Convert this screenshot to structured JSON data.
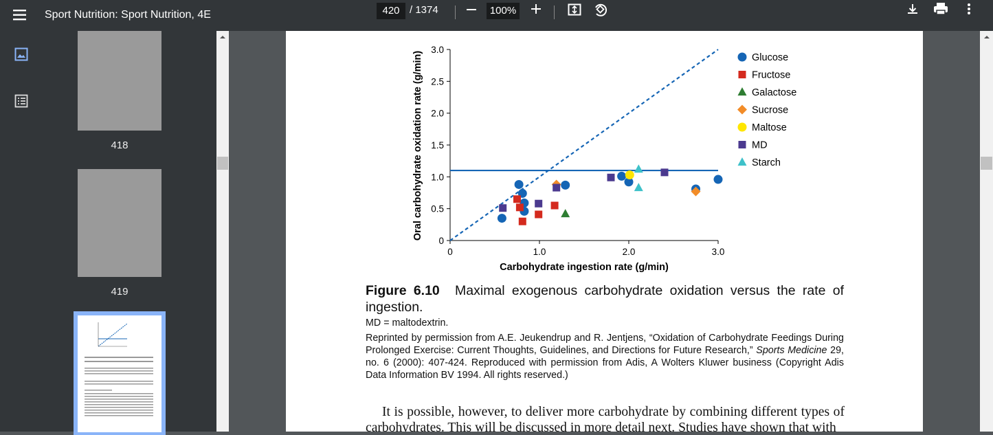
{
  "toolbar": {
    "title": "Sport Nutrition: Sport Nutrition, 4E",
    "page_current": "420",
    "page_total": "/ 1374",
    "zoom": "100%"
  },
  "sidebar": {
    "thumbnail_labels": [
      "418",
      "419"
    ]
  },
  "chart_data": {
    "type": "scatter",
    "x_label": "Carbohydrate ingestion rate (g/min)",
    "y_label": "Oral carbohydrate oxidation rate (g/min)",
    "xlim": [
      0,
      3
    ],
    "ylim": [
      0,
      3
    ],
    "xticks": [
      0,
      {
        "value": 1,
        "label": "1.0"
      },
      {
        "value": 2,
        "label": "2.0"
      },
      {
        "value": 3,
        "label": "3.0"
      }
    ],
    "yticks": [
      0,
      0.5,
      {
        "value": 1,
        "label": "1.0"
      },
      1.5,
      {
        "value": 2,
        "label": "2.0"
      },
      2.5,
      {
        "value": 3,
        "label": "3.0"
      }
    ],
    "hline": 1.1,
    "hline_color": "#1565b5",
    "diagonal": {
      "x": [
        0,
        3
      ],
      "values": [
        0,
        3
      ]
    },
    "series": [
      {
        "name": "Glucose",
        "color": "#1565b5",
        "marker": "circle",
        "x": [
          0.77,
          0.81,
          0.83,
          0.83,
          0.58,
          1.29,
          1.92,
          2.0,
          2.75,
          3.0
        ],
        "values": [
          0.88,
          0.74,
          0.59,
          0.46,
          0.35,
          0.87,
          1.01,
          0.92,
          0.81,
          0.96
        ]
      },
      {
        "name": "Fructose",
        "color": "#d42a1e",
        "marker": "square",
        "x": [
          0.75,
          0.78,
          0.81,
          0.99,
          1.17
        ],
        "values": [
          0.65,
          0.52,
          0.3,
          0.41,
          0.55
        ]
      },
      {
        "name": "Galactose",
        "color": "#2e7d32",
        "marker": "triangle",
        "x": [
          1.29
        ],
        "values": [
          0.42
        ]
      },
      {
        "name": "Sucrose",
        "color": "#f28c28",
        "marker": "diamond",
        "x": [
          1.19,
          2.75
        ],
        "values": [
          0.88,
          0.77
        ]
      },
      {
        "name": "Maltose",
        "color": "#ffe600",
        "marker": "circle",
        "x": [
          2.01
        ],
        "values": [
          1.03
        ]
      },
      {
        "name": "MD",
        "color": "#4b3a8f",
        "marker": "square",
        "x": [
          0.59,
          0.99,
          1.19,
          1.8,
          2.4
        ],
        "values": [
          0.51,
          0.58,
          0.83,
          0.99,
          1.07
        ]
      },
      {
        "name": "Starch",
        "color": "#3ec1c9",
        "marker": "triangle",
        "x": [
          2.11,
          2.11
        ],
        "values": [
          1.12,
          0.83
        ]
      }
    ]
  },
  "caption": {
    "figure_label": "Figure 6.10",
    "title": "Maximal exogenous carbohydrate oxidation versus the rate of ingestion.",
    "note": "MD = maltodextrin.",
    "credit": [
      "Reprinted by permission from A.E. Jeukendrup and R. Jentjens, “Oxidation of Carbohydrate Feedings During Prolonged Exercise: Current Thoughts, Guidelines, and Directions for Future Research,” ",
      "Sports Medicine",
      " 29, no. 6 (2000): 407-424. Reproduced with permission from Adis, A Wolters Kluwer business (Copyright Adis Data Information BV 1994. All rights reserved.)"
    ]
  },
  "body_text": "It is possible, however, to deliver more carbohydrate by combining different types of carbohydrates. This will be discussed in more detail next. Studies have shown that with"
}
